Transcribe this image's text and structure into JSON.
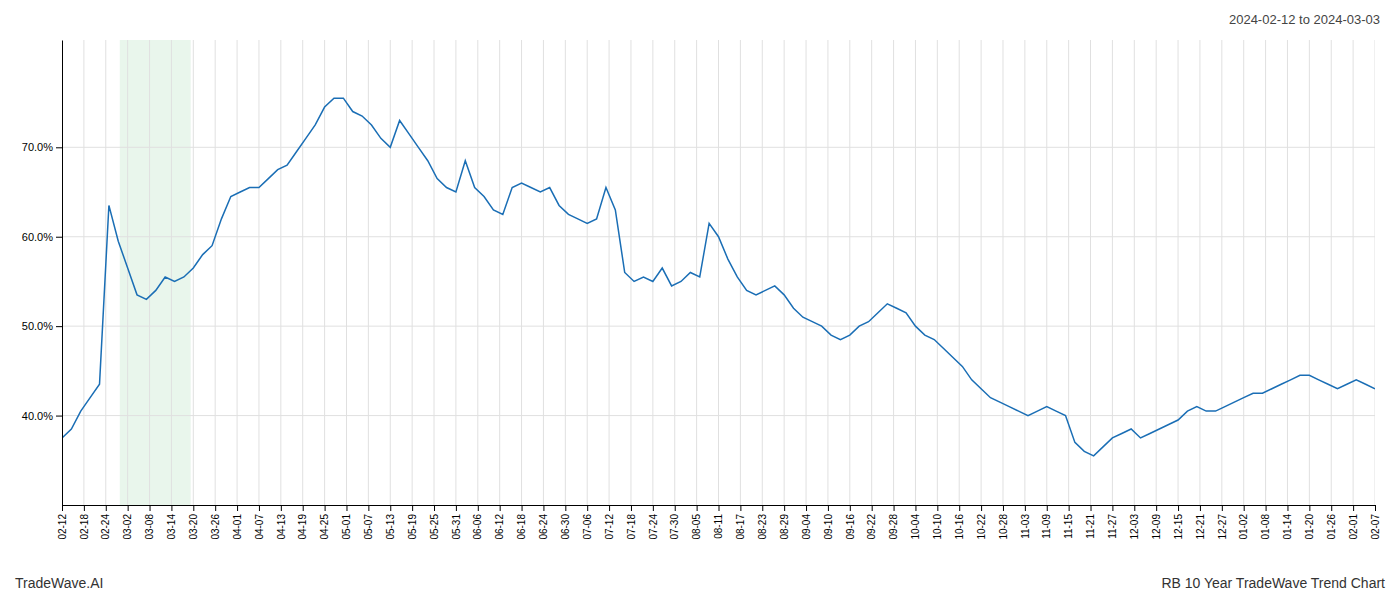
{
  "chart_data": {
    "type": "line",
    "title": "RB 10 Year TradeWave Trend Chart",
    "subtitle": "2024-02-12 to 2024-03-03",
    "annotations": [
      "TradeWave.AI"
    ],
    "color": "#1a6eb5",
    "grid": true,
    "values": [
      37.5,
      38.5,
      40.5,
      42.0,
      43.5,
      63.5,
      59.5,
      56.5,
      53.5,
      53.0,
      54.0,
      55.5,
      55.0,
      55.5,
      56.5,
      58.0,
      59.0,
      62.0,
      64.5,
      65.0,
      65.5,
      65.5,
      66.5,
      67.5,
      68.0,
      69.5,
      71.0,
      72.5,
      74.5,
      75.5,
      75.5,
      74.0,
      73.5,
      72.5,
      71.0,
      70.0,
      73.0,
      71.5,
      70.0,
      68.5,
      66.5,
      65.5,
      65.0,
      68.5,
      65.5,
      64.5,
      63.0,
      62.5,
      65.5,
      66.0,
      65.5,
      65.0,
      65.5,
      63.5,
      62.5,
      62.0,
      61.5,
      62.0,
      65.5,
      63.0,
      56.0,
      55.0,
      55.5,
      55.0,
      56.5,
      54.5,
      55.0,
      56.0,
      55.5,
      61.5,
      60.0,
      57.5,
      55.5,
      54.0,
      53.5,
      54.0,
      54.5,
      53.5,
      52.0,
      51.0,
      50.5,
      50.0,
      49.0,
      48.5,
      49.0,
      50.0,
      50.5,
      51.5,
      52.5,
      52.0,
      51.5,
      50.0,
      49.0,
      48.5,
      47.5,
      46.5,
      45.5,
      44.0,
      43.0,
      42.0,
      41.5,
      41.0,
      40.5,
      40.0,
      40.5,
      41.0,
      40.5,
      40.0,
      37.0,
      36.0,
      35.5,
      36.5,
      37.5,
      38.0,
      38.5,
      37.5,
      38.0,
      38.5,
      39.0,
      39.5,
      40.5,
      41.0,
      40.5,
      40.5,
      41.0,
      41.5,
      42.0,
      42.5,
      42.5,
      43.0,
      43.5,
      44.0,
      44.5,
      44.5,
      44.0,
      43.5,
      43.0,
      43.5,
      44.0,
      43.5,
      43.0
    ],
    "xlim": [
      0,
      140
    ],
    "xticks": [
      {
        "value": 0,
        "label": "02-12"
      },
      {
        "value": 2.3333333333,
        "label": "02-18"
      },
      {
        "value": 4.6666666667,
        "label": "02-24"
      },
      {
        "value": 7,
        "label": "03-02"
      },
      {
        "value": 9.3333333333,
        "label": "03-08"
      },
      {
        "value": 11.6666666667,
        "label": "03-14"
      },
      {
        "value": 14,
        "label": "03-20"
      },
      {
        "value": 16.3333333333,
        "label": "03-26"
      },
      {
        "value": 18.6666666667,
        "label": "04-01"
      },
      {
        "value": 21,
        "label": "04-07"
      },
      {
        "value": 23.3333333333,
        "label": "04-13"
      },
      {
        "value": 25.6666666667,
        "label": "04-19"
      },
      {
        "value": 28,
        "label": "04-25"
      },
      {
        "value": 30.3333333333,
        "label": "05-01"
      },
      {
        "value": 32.6666666667,
        "label": "05-07"
      },
      {
        "value": 35,
        "label": "05-13"
      },
      {
        "value": 37.3333333333,
        "label": "05-19"
      },
      {
        "value": 39.6666666667,
        "label": "05-25"
      },
      {
        "value": 42,
        "label": "05-31"
      },
      {
        "value": 44.3333333333,
        "label": "06-06"
      },
      {
        "value": 46.6666666667,
        "label": "06-12"
      },
      {
        "value": 49,
        "label": "06-18"
      },
      {
        "value": 51.3333333333,
        "label": "06-24"
      },
      {
        "value": 53.6666666667,
        "label": "06-30"
      },
      {
        "value": 56,
        "label": "07-06"
      },
      {
        "value": 58.3333333333,
        "label": "07-12"
      },
      {
        "value": 60.6666666667,
        "label": "07-18"
      },
      {
        "value": 63,
        "label": "07-24"
      },
      {
        "value": 65.3333333333,
        "label": "07-30"
      },
      {
        "value": 67.6666666667,
        "label": "08-05"
      },
      {
        "value": 70,
        "label": "08-11"
      },
      {
        "value": 72.3333333333,
        "label": "08-17"
      },
      {
        "value": 74.6666666667,
        "label": "08-23"
      },
      {
        "value": 77,
        "label": "08-29"
      },
      {
        "value": 79.3333333333,
        "label": "09-04"
      },
      {
        "value": 81.6666666667,
        "label": "09-10"
      },
      {
        "value": 84,
        "label": "09-16"
      },
      {
        "value": 86.3333333333,
        "label": "09-22"
      },
      {
        "value": 88.6666666667,
        "label": "09-28"
      },
      {
        "value": 91,
        "label": "10-04"
      },
      {
        "value": 93.3333333333,
        "label": "10-10"
      },
      {
        "value": 95.6666666667,
        "label": "10-16"
      },
      {
        "value": 98,
        "label": "10-22"
      },
      {
        "value": 100.3333333333,
        "label": "10-28"
      },
      {
        "value": 102.6666666667,
        "label": "11-03"
      },
      {
        "value": 105,
        "label": "11-09"
      },
      {
        "value": 107.3333333333,
        "label": "11-15"
      },
      {
        "value": 109.6666666667,
        "label": "11-21"
      },
      {
        "value": 112,
        "label": "11-27"
      },
      {
        "value": 114.3333333333,
        "label": "12-03"
      },
      {
        "value": 116.6666666667,
        "label": "12-09"
      },
      {
        "value": 119,
        "label": "12-15"
      },
      {
        "value": 121.3333333333,
        "label": "12-21"
      },
      {
        "value": 123.6666666667,
        "label": "12-27"
      },
      {
        "value": 126,
        "label": "01-02"
      },
      {
        "value": 128.3333333333,
        "label": "01-08"
      },
      {
        "value": 130.6666666667,
        "label": "01-14"
      },
      {
        "value": 133,
        "label": "01-20"
      },
      {
        "value": 135.3333333333,
        "label": "01-26"
      },
      {
        "value": 137.6666666667,
        "label": "02-01"
      },
      {
        "value": 140,
        "label": "02-07"
      }
    ],
    "ylim": [
      30.0,
      82.0
    ],
    "yticks": [
      {
        "value": 40.0,
        "label": "40.0%"
      },
      {
        "value": 50.0,
        "label": "50.0%"
      },
      {
        "value": 60.0,
        "label": "60.0%"
      },
      {
        "value": 70.0,
        "label": "70.0%"
      }
    ],
    "shade": {
      "xlim": [
        6.16,
        13.72
      ],
      "color": "#d4edda"
    }
  }
}
